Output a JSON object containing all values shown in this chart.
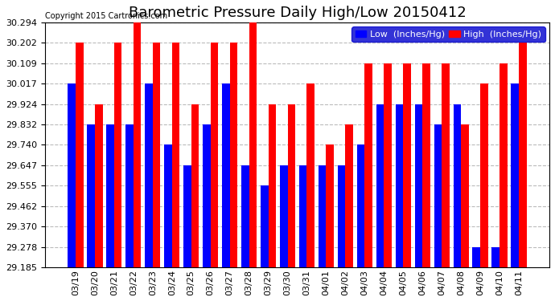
{
  "title": "Barometric Pressure Daily High/Low 20150412",
  "copyright": "Copyright 2015 Cartronics.com",
  "labels": [
    "03/19",
    "03/20",
    "03/21",
    "03/22",
    "03/23",
    "03/24",
    "03/25",
    "03/26",
    "03/27",
    "03/28",
    "03/29",
    "03/30",
    "03/31",
    "04/01",
    "04/02",
    "04/03",
    "04/04",
    "04/05",
    "04/06",
    "04/07",
    "04/08",
    "04/09",
    "04/10",
    "04/11"
  ],
  "low": [
    30.017,
    29.832,
    29.832,
    29.832,
    30.017,
    29.74,
    29.647,
    29.832,
    30.017,
    29.647,
    29.555,
    29.647,
    29.647,
    29.647,
    29.647,
    29.74,
    29.924,
    29.924,
    29.924,
    29.832,
    29.924,
    29.278,
    29.278,
    30.017
  ],
  "high": [
    30.202,
    29.924,
    30.202,
    30.294,
    30.202,
    30.202,
    29.924,
    30.202,
    30.202,
    30.294,
    29.924,
    29.924,
    30.017,
    29.74,
    29.832,
    30.109,
    30.109,
    30.109,
    30.109,
    30.109,
    29.832,
    30.017,
    30.109,
    30.202
  ],
  "low_color": "#0000ff",
  "high_color": "#ff0000",
  "bg_color": "#ffffff",
  "grid_color": "#aaaaaa",
  "yticks": [
    29.185,
    29.278,
    29.37,
    29.462,
    29.555,
    29.647,
    29.74,
    29.832,
    29.924,
    30.017,
    30.109,
    30.202,
    30.294
  ],
  "ymin": 29.185,
  "ymax": 30.294,
  "title_fontsize": 13,
  "tick_fontsize": 8,
  "legend_low_label": "Low  (Inches/Hg)",
  "legend_high_label": "High  (Inches/Hg)"
}
